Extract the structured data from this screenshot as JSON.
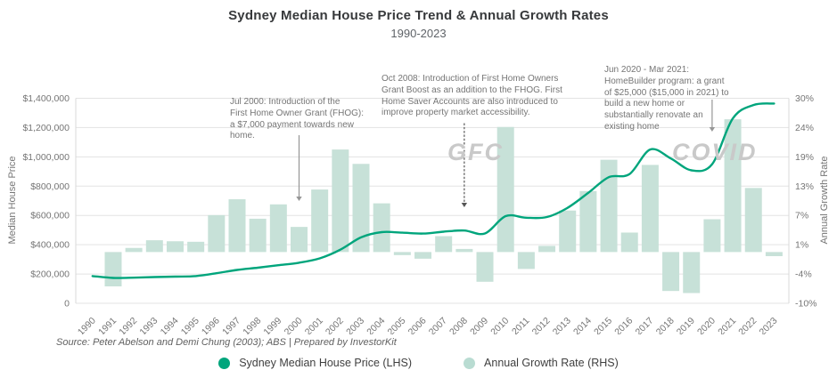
{
  "header": {
    "title": "Sydney Median House Price Trend & Annual Growth Rates",
    "subtitle": "1990-2023"
  },
  "source": "Source: Peter Abelson and Demi Chung (2003); ABS | Prepared by InvestorKit",
  "watermarks": [
    "GFC",
    "COVID"
  ],
  "annotations": [
    {
      "text": "Jul 2000: Introduction of the\nFirst Home Owner Grant (FHOG):\na $7,000 payment towards new\nhome.",
      "arrow_year": 2000,
      "arrow_style": "solid"
    },
    {
      "text": "Oct 2008: Introduction of First Home Owners\nGrant Boost as an addition to the FHOG. First\nHome Saver Accounts are also introduced to\nimprove property market accessibility.",
      "arrow_year": 2008,
      "arrow_style": "dotted"
    },
    {
      "text": "Jun 2020 -  Mar 2021:\nHomeBuilder program: a grant\nof $25,000 ($15,000 in 2021) to\nbuild a new home or\nsubstantially renovate an\nexisting home",
      "arrow_year": 2020,
      "arrow_style": "solid"
    }
  ],
  "legend": {
    "items": [
      {
        "label": "Sydney Median House Price (LHS)",
        "color": "#00a57c"
      },
      {
        "label": "Annual Growth Rate (RHS)",
        "color": "#b9dcd2"
      }
    ]
  },
  "colors": {
    "line": "#00a57c",
    "bar": "#c7e1d8",
    "grid": "#e3e3e3",
    "axis_border": "#d9d9d9",
    "tick_text": "#757575",
    "arrow": "#969696",
    "arrow_dotted": "#555555"
  },
  "chart_data": {
    "type": "line+bar dual-axis combo",
    "x": [
      1990,
      1991,
      1992,
      1993,
      1994,
      1995,
      1996,
      1997,
      1998,
      1999,
      2000,
      2001,
      2002,
      2003,
      2004,
      2005,
      2006,
      2007,
      2008,
      2009,
      2010,
      2011,
      2012,
      2013,
      2014,
      2015,
      2016,
      2017,
      2018,
      2019,
      2020,
      2021,
      2022,
      2023
    ],
    "series": [
      {
        "name": "Sydney Median House Price (LHS)",
        "type": "line",
        "axis": "left",
        "values": [
          186000,
          173000,
          175000,
          179000,
          182000,
          186000,
          205000,
          228000,
          243000,
          260000,
          277000,
          307000,
          366000,
          450000,
          486000,
          482000,
          476000,
          489000,
          497000,
          477000,
          595000,
          584000,
          589000,
          652000,
          754000,
          861000,
          882000,
          1050000,
          989000,
          908000,
          950000,
          1262000,
          1354000,
          1364000
        ]
      },
      {
        "name": "Annual Growth Rate (RHS)",
        "type": "bar",
        "axis": "right",
        "values": [
          null,
          -6.7,
          0.8,
          2.3,
          2.1,
          2.0,
          7.2,
          10.3,
          6.5,
          9.3,
          4.9,
          12.2,
          20.0,
          17.2,
          9.5,
          -0.6,
          -1.3,
          3.1,
          0.6,
          -5.8,
          24.4,
          -3.3,
          1.2,
          8.1,
          11.9,
          18.0,
          3.8,
          17.0,
          -7.6,
          -8.0,
          6.4,
          25.9,
          12.5,
          -0.8
        ]
      }
    ],
    "left_axis": {
      "title": "Median House Price",
      "range": [
        0,
        1400000
      ],
      "tick_labels": [
        "$1,400,000",
        "$1,200,000",
        "$1,000,000",
        "$800,000",
        "$600,000",
        "$400,000",
        "$200,000",
        "0"
      ]
    },
    "right_axis": {
      "title": "Annual Growth Rate",
      "range": [
        -10,
        30
      ],
      "tick_labels": [
        "30%",
        "24%",
        "19%",
        "13%",
        "7%",
        "1%",
        "-4%",
        "-10%"
      ]
    },
    "grid": "horizontal",
    "legend_position": "bottom"
  }
}
